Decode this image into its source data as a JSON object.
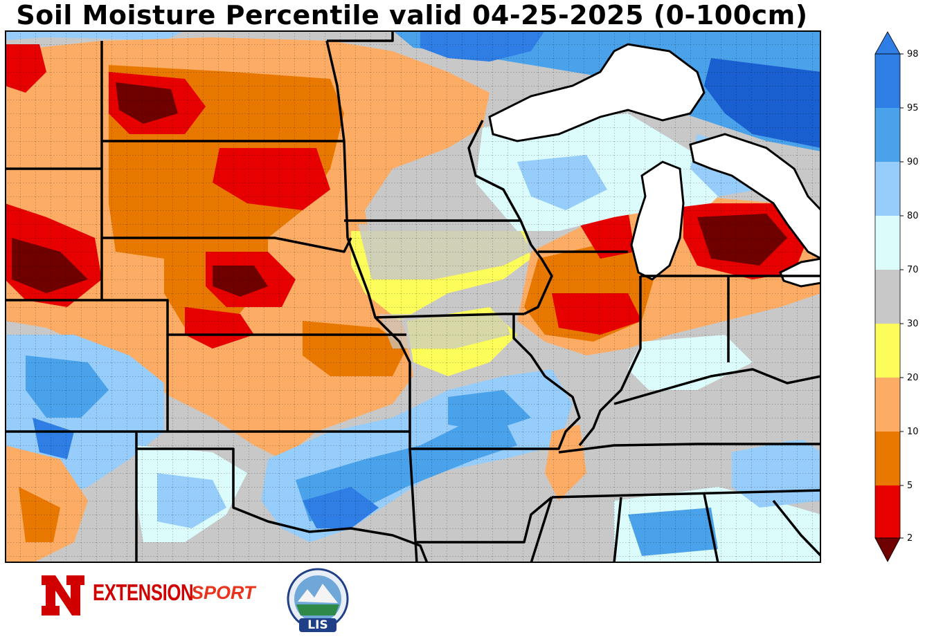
{
  "title": "Soil Moisture Percentile valid 04-25-2025 (0-100cm)",
  "colorbar": {
    "ticks": [
      "2",
      "5",
      "10",
      "20",
      "30",
      "70",
      "80",
      "90",
      "95",
      "98"
    ],
    "colors": {
      "below_2": "#6e0000",
      "2_5": "#e60000",
      "5_10": "#e87800",
      "10_20": "#fcac64",
      "20_30": "#fcfc5a",
      "30_70": "#c8c8c8",
      "70_80": "#dcfcfc",
      "80_90": "#96cdfa",
      "90_95": "#4aa2ea",
      "95_98": "#2e7ee6",
      "above_98": "#1a5fd0"
    }
  },
  "logos": {
    "nebraska_extension": "EXTENSION",
    "sport": "SPORT",
    "lis": "LIS"
  },
  "icons": {
    "nebraska": "nebraska-n-logo-icon",
    "sport": "nasa-sport-logo-icon",
    "lis": "nasa-lis-logo-icon"
  }
}
